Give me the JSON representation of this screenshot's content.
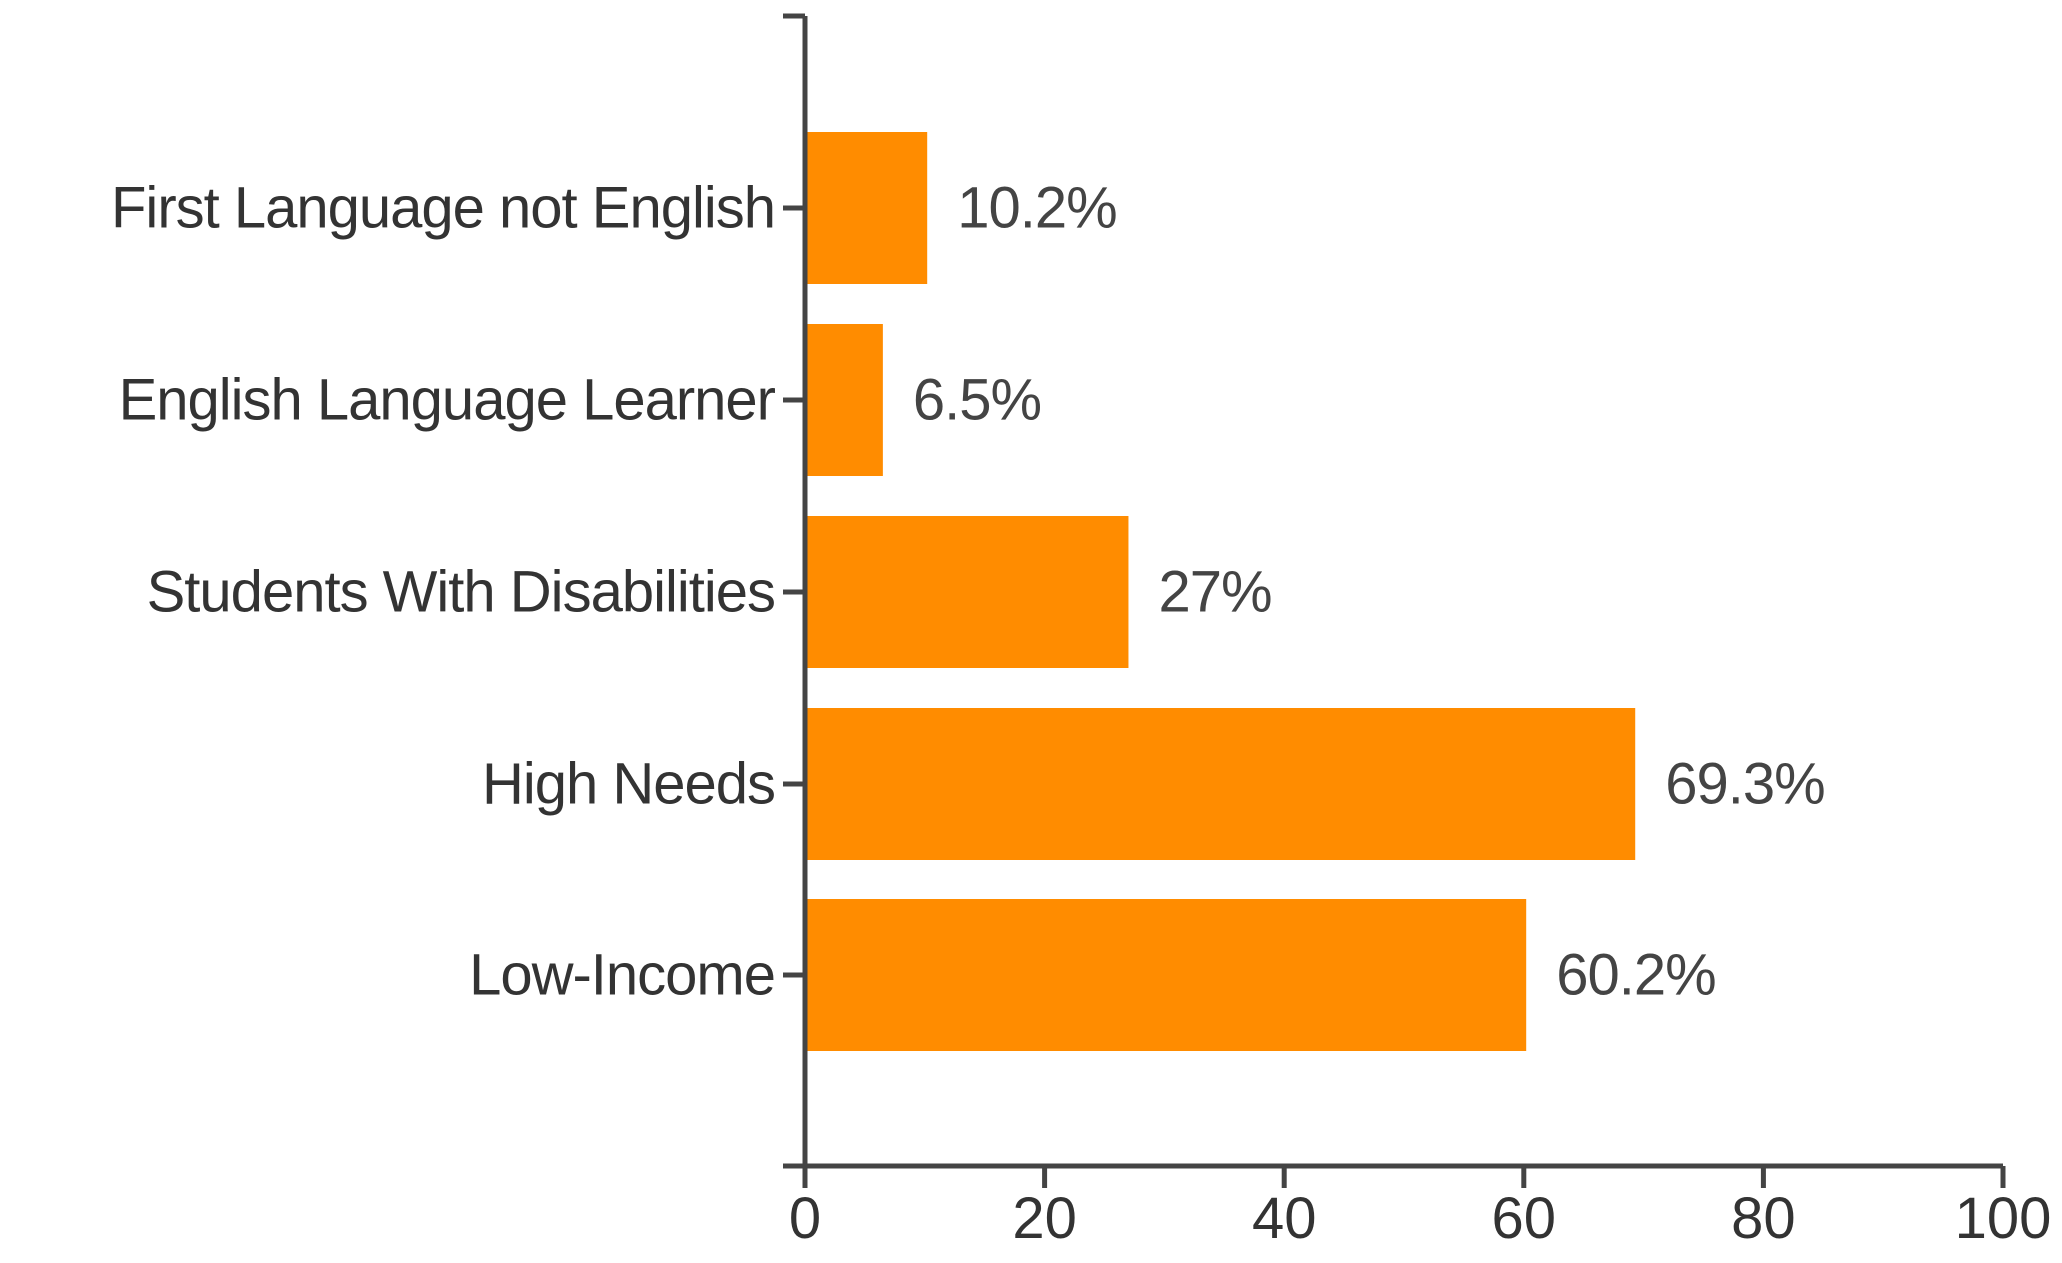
{
  "chart_data": {
    "type": "bar",
    "orientation": "horizontal",
    "categories": [
      "First Language not English",
      "English Language Learner",
      "Students With Disabilities",
      "High Needs",
      "Low-Income"
    ],
    "values": [
      10.2,
      6.5,
      27,
      69.3,
      60.2
    ],
    "value_labels": [
      "10.2%",
      "6.5%",
      "27%",
      "69.3%",
      "60.2%"
    ],
    "xlim": [
      0,
      100
    ],
    "xticks": [
      0,
      20,
      40,
      60,
      80,
      100
    ],
    "title": "",
    "xlabel": "",
    "ylabel": "",
    "grid": false,
    "bar_color": "#FF8C00",
    "axis_color": "#444444"
  }
}
